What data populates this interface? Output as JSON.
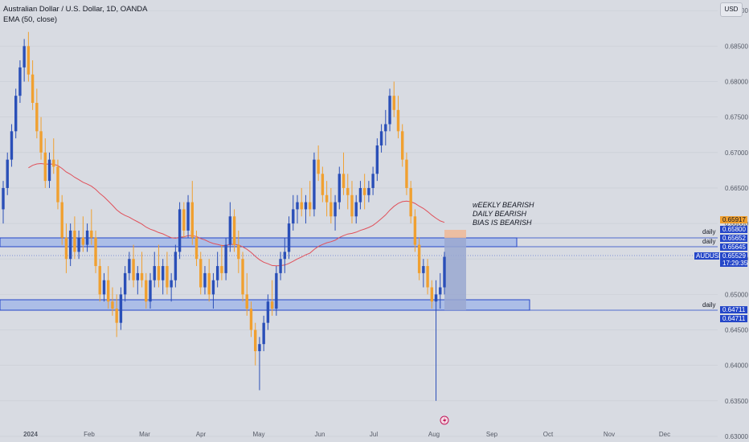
{
  "legend": {
    "symbol_line": "Australian Dollar / U.S. Dollar, 1D, OANDA",
    "indicator_line": "EMA (50, close)"
  },
  "currency_button": "USD",
  "colors": {
    "background": "#d8dbe2",
    "grid": "#c9ccd4",
    "up_candle": "#2a4fb8",
    "down_candle": "#f0a030",
    "ema": "#e0505a",
    "zone_fill": "#a4b8e8",
    "zone_border": "#2446c8",
    "projection_fill": "#9aa8d0",
    "projection_top": "#f0b896",
    "price_tag": "#2446c8",
    "orange_tag": "#f0a030",
    "text": "#131722"
  },
  "annotation": {
    "lines": [
      "wEEKLY BEARISH",
      "DAILY BEARISH",
      "BIAS IS BEARISH"
    ]
  },
  "zone_labels": [
    "daily",
    "daily",
    "daily"
  ],
  "price_tags": {
    "orange_top": "0.65917",
    "upper_blue": "0.65800",
    "upper_mid": "0.65652",
    "upper_low": "0.65645",
    "symbol": "AUDUSD",
    "current_price": "0.65529",
    "countdown": "17:29:35",
    "lower_a": "0.64711",
    "lower_b": "0.64711"
  },
  "chart_data": {
    "type": "candlestick",
    "title": "Australian Dollar / U.S. Dollar, 1D, OANDA",
    "indicator": "EMA (50, close)",
    "y_ticks": [
      "0.69000",
      "0.68500",
      "0.68000",
      "0.67500",
      "0.67000",
      "0.66500",
      "0.66000",
      "0.65500",
      "0.65000",
      "0.64500",
      "0.64000",
      "0.63500",
      "0.63000"
    ],
    "ylim": [
      0.6292,
      0.6915
    ],
    "x_ticks": [
      "2024",
      "Feb",
      "Mar",
      "Apr",
      "May",
      "Jun",
      "Jul",
      "Aug",
      "Sep",
      "Oct",
      "Nov",
      "Dec"
    ],
    "candles": [
      [
        0.662,
        0.666,
        0.66,
        0.665
      ],
      [
        0.665,
        0.67,
        0.664,
        0.669
      ],
      [
        0.669,
        0.674,
        0.668,
        0.673
      ],
      [
        0.673,
        0.679,
        0.672,
        0.678
      ],
      [
        0.678,
        0.683,
        0.677,
        0.682
      ],
      [
        0.682,
        0.686,
        0.68,
        0.685
      ],
      [
        0.685,
        0.687,
        0.68,
        0.681
      ],
      [
        0.681,
        0.683,
        0.676,
        0.677
      ],
      [
        0.677,
        0.679,
        0.672,
        0.673
      ],
      [
        0.673,
        0.675,
        0.669,
        0.67
      ],
      [
        0.67,
        0.672,
        0.665,
        0.666
      ],
      [
        0.666,
        0.67,
        0.665,
        0.669
      ],
      [
        0.669,
        0.672,
        0.667,
        0.668
      ],
      [
        0.668,
        0.669,
        0.662,
        0.663
      ],
      [
        0.663,
        0.664,
        0.657,
        0.658
      ],
      [
        0.658,
        0.66,
        0.653,
        0.655
      ],
      [
        0.655,
        0.66,
        0.654,
        0.659
      ],
      [
        0.659,
        0.661,
        0.655,
        0.656
      ],
      [
        0.656,
        0.659,
        0.655,
        0.658
      ],
      [
        0.658,
        0.661,
        0.656,
        0.657
      ],
      [
        0.657,
        0.66,
        0.656,
        0.659
      ],
      [
        0.659,
        0.662,
        0.657,
        0.658
      ],
      [
        0.658,
        0.659,
        0.653,
        0.654
      ],
      [
        0.654,
        0.655,
        0.649,
        0.65
      ],
      [
        0.65,
        0.653,
        0.649,
        0.652
      ],
      [
        0.652,
        0.654,
        0.648,
        0.649
      ],
      [
        0.649,
        0.651,
        0.647,
        0.648
      ],
      [
        0.648,
        0.65,
        0.644,
        0.646
      ],
      [
        0.646,
        0.651,
        0.645,
        0.65
      ],
      [
        0.65,
        0.654,
        0.649,
        0.653
      ],
      [
        0.653,
        0.656,
        0.652,
        0.655
      ],
      [
        0.655,
        0.657,
        0.651,
        0.652
      ],
      [
        0.652,
        0.654,
        0.65,
        0.653
      ],
      [
        0.653,
        0.656,
        0.651,
        0.652
      ],
      [
        0.652,
        0.653,
        0.648,
        0.649
      ],
      [
        0.649,
        0.653,
        0.648,
        0.652
      ],
      [
        0.652,
        0.656,
        0.651,
        0.654
      ],
      [
        0.654,
        0.657,
        0.651,
        0.652
      ],
      [
        0.652,
        0.655,
        0.65,
        0.654
      ],
      [
        0.654,
        0.656,
        0.65,
        0.651
      ],
      [
        0.651,
        0.653,
        0.649,
        0.652
      ],
      [
        0.652,
        0.657,
        0.651,
        0.656
      ],
      [
        0.656,
        0.663,
        0.655,
        0.662
      ],
      [
        0.662,
        0.663,
        0.658,
        0.659
      ],
      [
        0.659,
        0.664,
        0.658,
        0.663
      ],
      [
        0.663,
        0.666,
        0.657,
        0.658
      ],
      [
        0.658,
        0.659,
        0.654,
        0.655
      ],
      [
        0.655,
        0.656,
        0.65,
        0.651
      ],
      [
        0.651,
        0.654,
        0.65,
        0.653
      ],
      [
        0.653,
        0.655,
        0.649,
        0.65
      ],
      [
        0.65,
        0.653,
        0.648,
        0.652
      ],
      [
        0.652,
        0.656,
        0.651,
        0.654
      ],
      [
        0.654,
        0.657,
        0.652,
        0.653
      ],
      [
        0.653,
        0.658,
        0.652,
        0.657
      ],
      [
        0.657,
        0.663,
        0.656,
        0.661
      ],
      [
        0.661,
        0.662,
        0.656,
        0.657
      ],
      [
        0.657,
        0.659,
        0.653,
        0.655
      ],
      [
        0.655,
        0.656,
        0.649,
        0.65
      ],
      [
        0.65,
        0.653,
        0.647,
        0.648
      ],
      [
        0.648,
        0.649,
        0.644,
        0.645
      ],
      [
        0.645,
        0.646,
        0.64,
        0.642
      ],
      [
        0.642,
        0.644,
        0.6365,
        0.643
      ],
      [
        0.643,
        0.647,
        0.642,
        0.646
      ],
      [
        0.646,
        0.65,
        0.645,
        0.649
      ],
      [
        0.649,
        0.652,
        0.647,
        0.648
      ],
      [
        0.648,
        0.654,
        0.647,
        0.653
      ],
      [
        0.653,
        0.656,
        0.652,
        0.655
      ],
      [
        0.655,
        0.658,
        0.653,
        0.656
      ],
      [
        0.656,
        0.661,
        0.655,
        0.66
      ],
      [
        0.66,
        0.664,
        0.659,
        0.662
      ],
      [
        0.662,
        0.664,
        0.66,
        0.663
      ],
      [
        0.663,
        0.665,
        0.661,
        0.662
      ],
      [
        0.662,
        0.664,
        0.66,
        0.663
      ],
      [
        0.663,
        0.666,
        0.661,
        0.662
      ],
      [
        0.662,
        0.67,
        0.661,
        0.669
      ],
      [
        0.669,
        0.671,
        0.666,
        0.667
      ],
      [
        0.667,
        0.668,
        0.663,
        0.664
      ],
      [
        0.664,
        0.666,
        0.661,
        0.663
      ],
      [
        0.663,
        0.665,
        0.66,
        0.661
      ],
      [
        0.661,
        0.664,
        0.659,
        0.663
      ],
      [
        0.663,
        0.668,
        0.662,
        0.667
      ],
      [
        0.667,
        0.67,
        0.664,
        0.665
      ],
      [
        0.665,
        0.667,
        0.662,
        0.664
      ],
      [
        0.664,
        0.666,
        0.66,
        0.661
      ],
      [
        0.661,
        0.664,
        0.66,
        0.663
      ],
      [
        0.663,
        0.666,
        0.662,
        0.665
      ],
      [
        0.665,
        0.667,
        0.662,
        0.664
      ],
      [
        0.664,
        0.666,
        0.663,
        0.665
      ],
      [
        0.665,
        0.668,
        0.664,
        0.667
      ],
      [
        0.667,
        0.672,
        0.666,
        0.671
      ],
      [
        0.671,
        0.674,
        0.67,
        0.673
      ],
      [
        0.673,
        0.676,
        0.671,
        0.674
      ],
      [
        0.674,
        0.679,
        0.673,
        0.678
      ],
      [
        0.678,
        0.68,
        0.675,
        0.676
      ],
      [
        0.676,
        0.678,
        0.672,
        0.673
      ],
      [
        0.673,
        0.674,
        0.668,
        0.669
      ],
      [
        0.669,
        0.67,
        0.664,
        0.665
      ],
      [
        0.665,
        0.666,
        0.66,
        0.661
      ],
      [
        0.661,
        0.662,
        0.656,
        0.657
      ],
      [
        0.657,
        0.658,
        0.652,
        0.653
      ],
      [
        0.653,
        0.655,
        0.651,
        0.654
      ],
      [
        0.654,
        0.655,
        0.65,
        0.651
      ],
      [
        0.651,
        0.652,
        0.648,
        0.649
      ],
      [
        0.649,
        0.652,
        0.635,
        0.65
      ],
      [
        0.65,
        0.653,
        0.648,
        0.651
      ],
      [
        0.651,
        0.656,
        0.65,
        0.6553
      ]
    ]
  }
}
